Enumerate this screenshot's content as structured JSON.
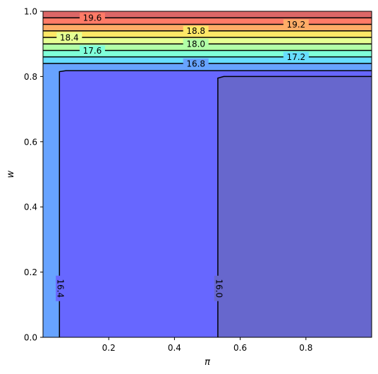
{
  "chart_data": {
    "type": "contour",
    "title": "",
    "xlabel": "π",
    "ylabel": "w",
    "xlim": [
      0.0,
      1.0
    ],
    "ylim": [
      0.0,
      1.0
    ],
    "x_ticks": [
      0.2,
      0.4,
      0.6,
      0.8
    ],
    "x_tick_labels": [
      "0.2",
      "0.4",
      "0.6",
      "0.8"
    ],
    "y_ticks": [
      0.0,
      0.2,
      0.4,
      0.6,
      0.8,
      1.0
    ],
    "y_tick_labels": [
      "0.0",
      "0.2",
      "0.4",
      "0.6",
      "0.8",
      "1.0"
    ],
    "grid": false,
    "colormap": "jet",
    "regions": [
      {
        "level_range": [
          15.8,
          16.2
        ],
        "color": "#6767cd",
        "polygon": [
          [
            0.532,
            0.0
          ],
          [
            1.0,
            0.0
          ],
          [
            1.0,
            0.8
          ],
          [
            0.55,
            0.8
          ],
          [
            0.532,
            0.795
          ]
        ]
      },
      {
        "level_range": [
          16.2,
          16.6
        ],
        "color": "#6767ff",
        "polygon": [
          [
            0.05,
            0.0
          ],
          [
            0.532,
            0.0
          ],
          [
            0.532,
            0.795
          ],
          [
            0.55,
            0.8
          ],
          [
            1.0,
            0.8
          ],
          [
            1.0,
            0.818
          ],
          [
            0.07,
            0.818
          ],
          [
            0.05,
            0.815
          ]
        ]
      },
      {
        "level_range": [
          16.6,
          17.0
        ],
        "color": "#67a3ff",
        "polygon": [
          [
            0.0,
            0.0
          ],
          [
            0.05,
            0.0
          ],
          [
            0.05,
            0.815
          ],
          [
            0.07,
            0.818
          ],
          [
            1.0,
            0.818
          ],
          [
            1.0,
            0.84
          ],
          [
            0.0,
            0.84
          ]
        ]
      },
      {
        "level_range": [
          17.0,
          17.4
        ],
        "color": "#67ddff",
        "polygon": [
          [
            0.0,
            0.84
          ],
          [
            1.0,
            0.84
          ],
          [
            1.0,
            0.86
          ],
          [
            0.0,
            0.86
          ]
        ]
      },
      {
        "level_range": [
          17.4,
          17.8
        ],
        "color": "#7fffd9",
        "polygon": [
          [
            0.0,
            0.86
          ],
          [
            1.0,
            0.86
          ],
          [
            1.0,
            0.88
          ],
          [
            0.0,
            0.88
          ]
        ]
      },
      {
        "level_range": [
          17.8,
          18.2
        ],
        "color": "#b1ffa6",
        "polygon": [
          [
            0.0,
            0.88
          ],
          [
            1.0,
            0.88
          ],
          [
            1.0,
            0.9
          ],
          [
            0.0,
            0.9
          ]
        ]
      },
      {
        "level_range": [
          18.2,
          18.6
        ],
        "color": "#e6ff93",
        "polygon": [
          [
            0.0,
            0.9
          ],
          [
            1.0,
            0.9
          ],
          [
            1.0,
            0.92
          ],
          [
            0.0,
            0.92
          ]
        ]
      },
      {
        "level_range": [
          18.6,
          19.0
        ],
        "color": "#ffe767",
        "polygon": [
          [
            0.0,
            0.92
          ],
          [
            1.0,
            0.92
          ],
          [
            1.0,
            0.94
          ],
          [
            0.0,
            0.94
          ]
        ]
      },
      {
        "level_range": [
          19.0,
          19.4
        ],
        "color": "#ffac67",
        "polygon": [
          [
            0.0,
            0.94
          ],
          [
            1.0,
            0.94
          ],
          [
            1.0,
            0.96
          ],
          [
            0.0,
            0.96
          ]
        ]
      },
      {
        "level_range": [
          19.4,
          19.8
        ],
        "color": "#ff7b67",
        "polygon": [
          [
            0.0,
            0.96
          ],
          [
            1.0,
            0.96
          ],
          [
            1.0,
            0.98
          ],
          [
            0.0,
            0.98
          ]
        ]
      },
      {
        "level_range": [
          19.8,
          20.2
        ],
        "color": "#dc6767",
        "polygon": [
          [
            0.0,
            0.98
          ],
          [
            1.0,
            0.98
          ],
          [
            1.0,
            1.0
          ],
          [
            0.0,
            1.0
          ]
        ]
      }
    ],
    "contour_lines": [
      {
        "level": 16.0,
        "label": "16.0",
        "label_at": [
          0.536,
          0.15
        ],
        "label_rotation": 90,
        "path": [
          [
            0.532,
            0.0
          ],
          [
            0.532,
            0.795
          ],
          [
            0.55,
            0.8
          ],
          [
            1.0,
            0.8
          ]
        ]
      },
      {
        "level": 16.4,
        "label": "16.4",
        "label_at": [
          0.054,
          0.15
        ],
        "label_rotation": 90,
        "path": [
          [
            0.05,
            0.0
          ],
          [
            0.05,
            0.815
          ],
          [
            0.07,
            0.818
          ],
          [
            1.0,
            0.818
          ]
        ]
      },
      {
        "level": 16.8,
        "label": "16.8",
        "label_at": [
          0.465,
          0.84
        ],
        "label_rotation": 0,
        "path": [
          [
            0.0,
            0.84
          ],
          [
            1.0,
            0.84
          ]
        ]
      },
      {
        "level": 17.2,
        "label": "17.2",
        "label_at": [
          0.77,
          0.86
        ],
        "label_rotation": 0,
        "path": [
          [
            0.0,
            0.86
          ],
          [
            1.0,
            0.86
          ]
        ]
      },
      {
        "level": 17.6,
        "label": "17.6",
        "label_at": [
          0.15,
          0.88
        ],
        "label_rotation": 0,
        "path": [
          [
            0.0,
            0.88
          ],
          [
            1.0,
            0.88
          ]
        ]
      },
      {
        "level": 18.0,
        "label": "18.0",
        "label_at": [
          0.465,
          0.9
        ],
        "label_rotation": 0,
        "path": [
          [
            0.0,
            0.9
          ],
          [
            1.0,
            0.9
          ]
        ]
      },
      {
        "level": 18.4,
        "label": "18.4",
        "label_at": [
          0.08,
          0.92
        ],
        "label_rotation": 0,
        "path": [
          [
            0.0,
            0.92
          ],
          [
            1.0,
            0.92
          ]
        ]
      },
      {
        "level": 18.8,
        "label": "18.8",
        "label_at": [
          0.465,
          0.94
        ],
        "label_rotation": 0,
        "path": [
          [
            0.0,
            0.94
          ],
          [
            1.0,
            0.94
          ]
        ]
      },
      {
        "level": 19.2,
        "label": "19.2",
        "label_at": [
          0.77,
          0.96
        ],
        "label_rotation": 0,
        "path": [
          [
            0.0,
            0.96
          ],
          [
            1.0,
            0.96
          ]
        ]
      },
      {
        "level": 19.6,
        "label": "19.6",
        "label_at": [
          0.15,
          0.98
        ],
        "label_rotation": 0,
        "path": [
          [
            0.0,
            0.98
          ],
          [
            1.0,
            0.98
          ]
        ]
      }
    ]
  }
}
